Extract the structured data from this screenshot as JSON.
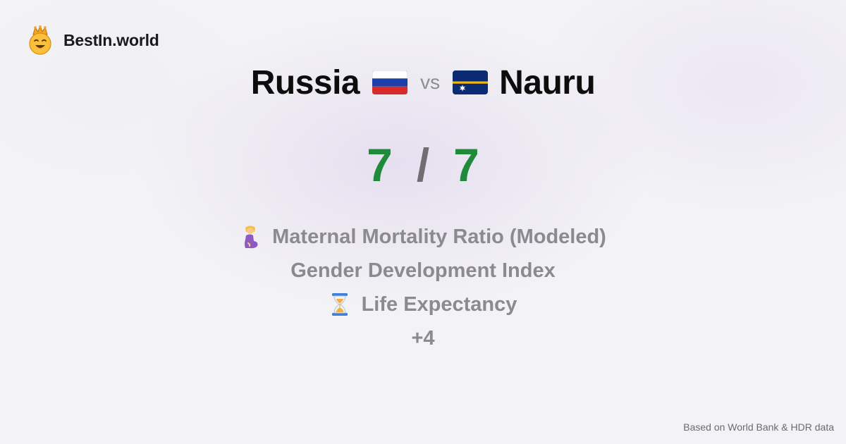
{
  "brand": {
    "name": "BestIn.world",
    "logo_icon": "crowned-smiley-icon"
  },
  "title": {
    "country_a": "Russia",
    "country_a_flag": "russia-flag-icon",
    "vs": "vs",
    "country_b": "Nauru",
    "country_b_flag": "nauru-flag-icon"
  },
  "score": {
    "a": "7",
    "separator": "/",
    "b": "7",
    "color": "#1f8a3a"
  },
  "metrics": [
    {
      "label": "Maternal Mortality Ratio (Modeled)",
      "icon": "pregnant-woman-icon"
    },
    {
      "label": "Gender Development Index",
      "icon": ""
    },
    {
      "label": "Life Expectancy",
      "icon": "hourglass-icon"
    },
    {
      "label": "+4",
      "icon": ""
    }
  ],
  "footer": {
    "source": "Based on World Bank & HDR data"
  }
}
